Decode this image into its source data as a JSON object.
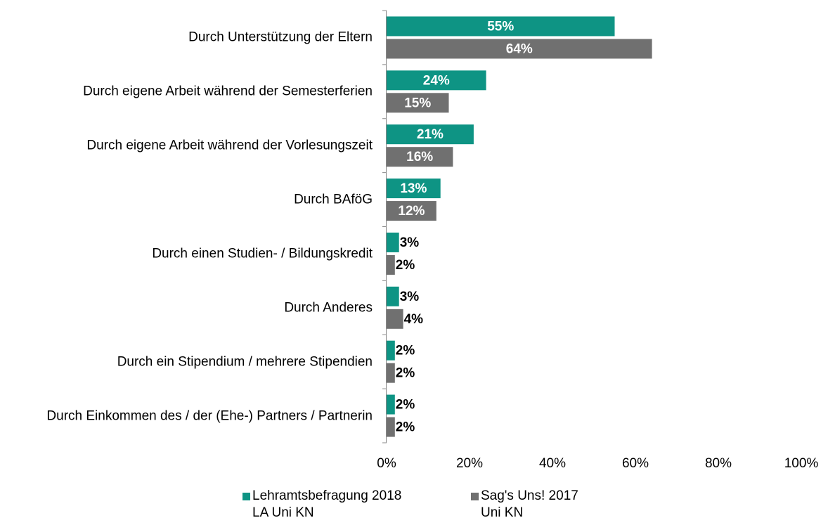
{
  "chart_data": {
    "type": "hbar",
    "categories": [
      "Durch Unterstützung der Eltern",
      "Durch eigene Arbeit während der Semesterferien",
      "Durch eigene Arbeit während der Vorlesungszeit",
      "Durch BAföG",
      "Durch einen Studien- / Bildungskredit",
      "Durch Anderes",
      "Durch ein Stipendium / mehrere Stipendien",
      "Durch Einkommen des / der (Ehe-) Partners / Partnerin"
    ],
    "series": [
      {
        "name": "Lehramtsbefragung 2018\nLA Uni KN",
        "color": "#0e9484",
        "values": [
          55,
          24,
          21,
          13,
          3,
          3,
          2,
          2
        ],
        "value_labels": [
          "55%",
          "24%",
          "21%",
          "13%",
          "3%",
          "3%",
          "2%",
          "2%"
        ]
      },
      {
        "name": "Sag's Uns! 2017\nUni KN",
        "color": "#707070",
        "values": [
          64,
          15,
          16,
          12,
          2,
          4,
          2,
          2
        ],
        "value_labels": [
          "64%",
          "15%",
          "16%",
          "12%",
          "2%",
          "4%",
          "2%",
          "2%"
        ]
      }
    ],
    "xlim": [
      0,
      100
    ],
    "xticks": [
      {
        "value": 0,
        "label": "0%"
      },
      {
        "value": 20,
        "label": "20%"
      },
      {
        "value": 40,
        "label": "40%"
      },
      {
        "value": 60,
        "label": "60%"
      },
      {
        "value": 80,
        "label": "80%"
      },
      {
        "value": 100,
        "label": "100%"
      }
    ],
    "legend": "bottom"
  }
}
